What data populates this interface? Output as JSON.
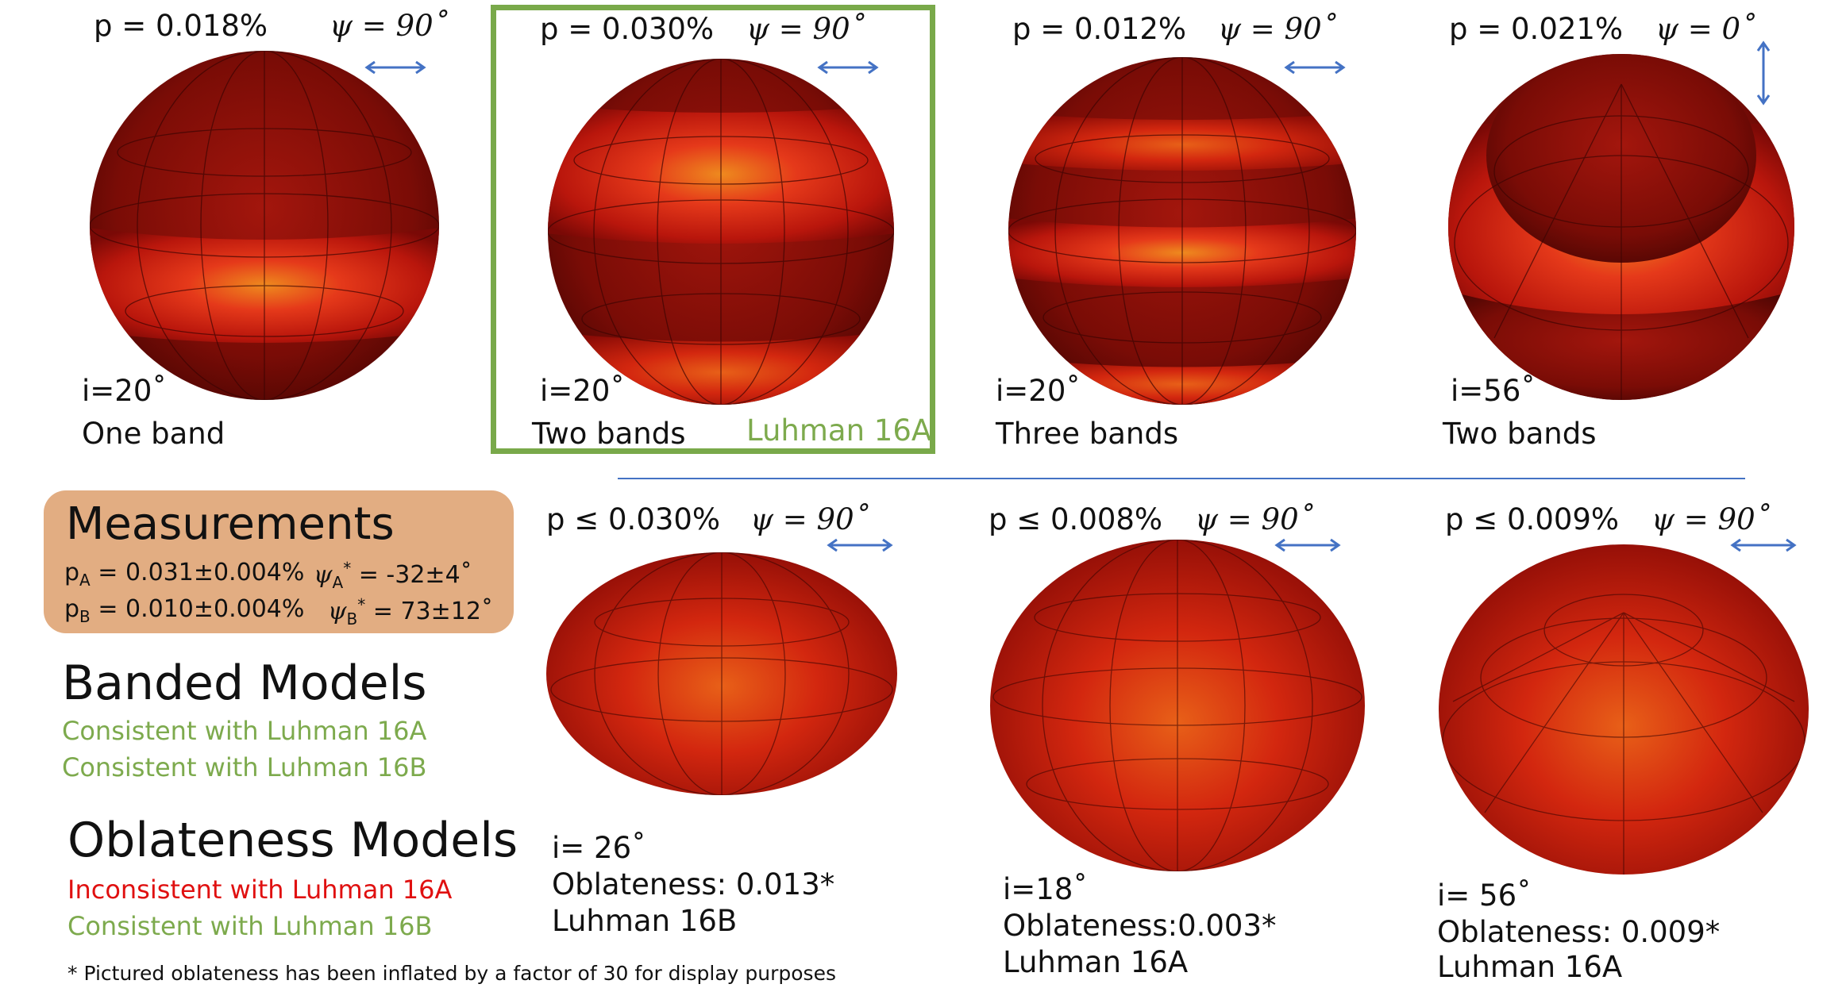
{
  "colors": {
    "frame": "#79a94a",
    "divider": "#4472c4",
    "arrow": "#4472c4",
    "box": "#e2ad82",
    "green": "#7daa4d",
    "red": "#e01010"
  },
  "banded": [
    {
      "p": "p = 0.018%",
      "psi": "ψ = 90˚",
      "inc": "i=20˚",
      "name": "One band",
      "arrow": "horizontal-arrow-icon"
    },
    {
      "p": "p = 0.030%",
      "psi": "ψ = 90˚",
      "inc": "i=20˚",
      "name": "Two bands",
      "tag": "Luhman 16A",
      "arrow": "horizontal-arrow-icon"
    },
    {
      "p": "p = 0.012%",
      "psi": "ψ = 90˚",
      "inc": "i=20˚",
      "name": "Three bands",
      "arrow": "horizontal-arrow-icon"
    },
    {
      "p": "p = 0.021%",
      "psi": "ψ = 0˚",
      "inc": "i=56˚",
      "name": "Two bands",
      "arrow": "vertical-arrow-icon"
    }
  ],
  "oblate": [
    {
      "p": "p ≤ 0.030%",
      "psi": "ψ = 90˚",
      "inc": "i= 26˚",
      "obl": "Oblateness: 0.013*",
      "target": "Luhman 16B"
    },
    {
      "p": "p ≤ 0.008%",
      "psi": "ψ = 90˚",
      "inc": "i=18˚",
      "obl": "Oblateness:0.003*",
      "target": "Luhman 16A"
    },
    {
      "p": "p ≤ 0.009%",
      "psi": "ψ = 90˚",
      "inc": "i= 56˚",
      "obl": "Oblateness: 0.009*",
      "target": "Luhman 16A"
    }
  ],
  "measurements": {
    "title": "Measurements",
    "pA_prefix": "p",
    "pA_sub": "A",
    "pA_value": " = 0.031±0.004%",
    "psiA_symbol": "ψ",
    "psiA_sub": "A",
    "psiA_sup": "*",
    "psiA_value": " = -32±4˚",
    "pB_prefix": "p",
    "pB_sub": "B",
    "pB_value": " = 0.010±0.004%",
    "psiB_symbol": "ψ",
    "psiB_sub": "B",
    "psiB_sup": "*",
    "psiB_value": " = 73±12˚"
  },
  "banded_models": {
    "title": "Banded Models",
    "line1": "Consistent with Luhman 16A",
    "line2": "Consistent with Luhman 16B"
  },
  "oblateness_models": {
    "title": "Oblateness Models",
    "line1": "Inconsistent with Luhman 16A",
    "line2": "Consistent with Luhman 16B"
  },
  "footnote": "* Pictured oblateness has been inflated by a factor of 30 for display purposes"
}
